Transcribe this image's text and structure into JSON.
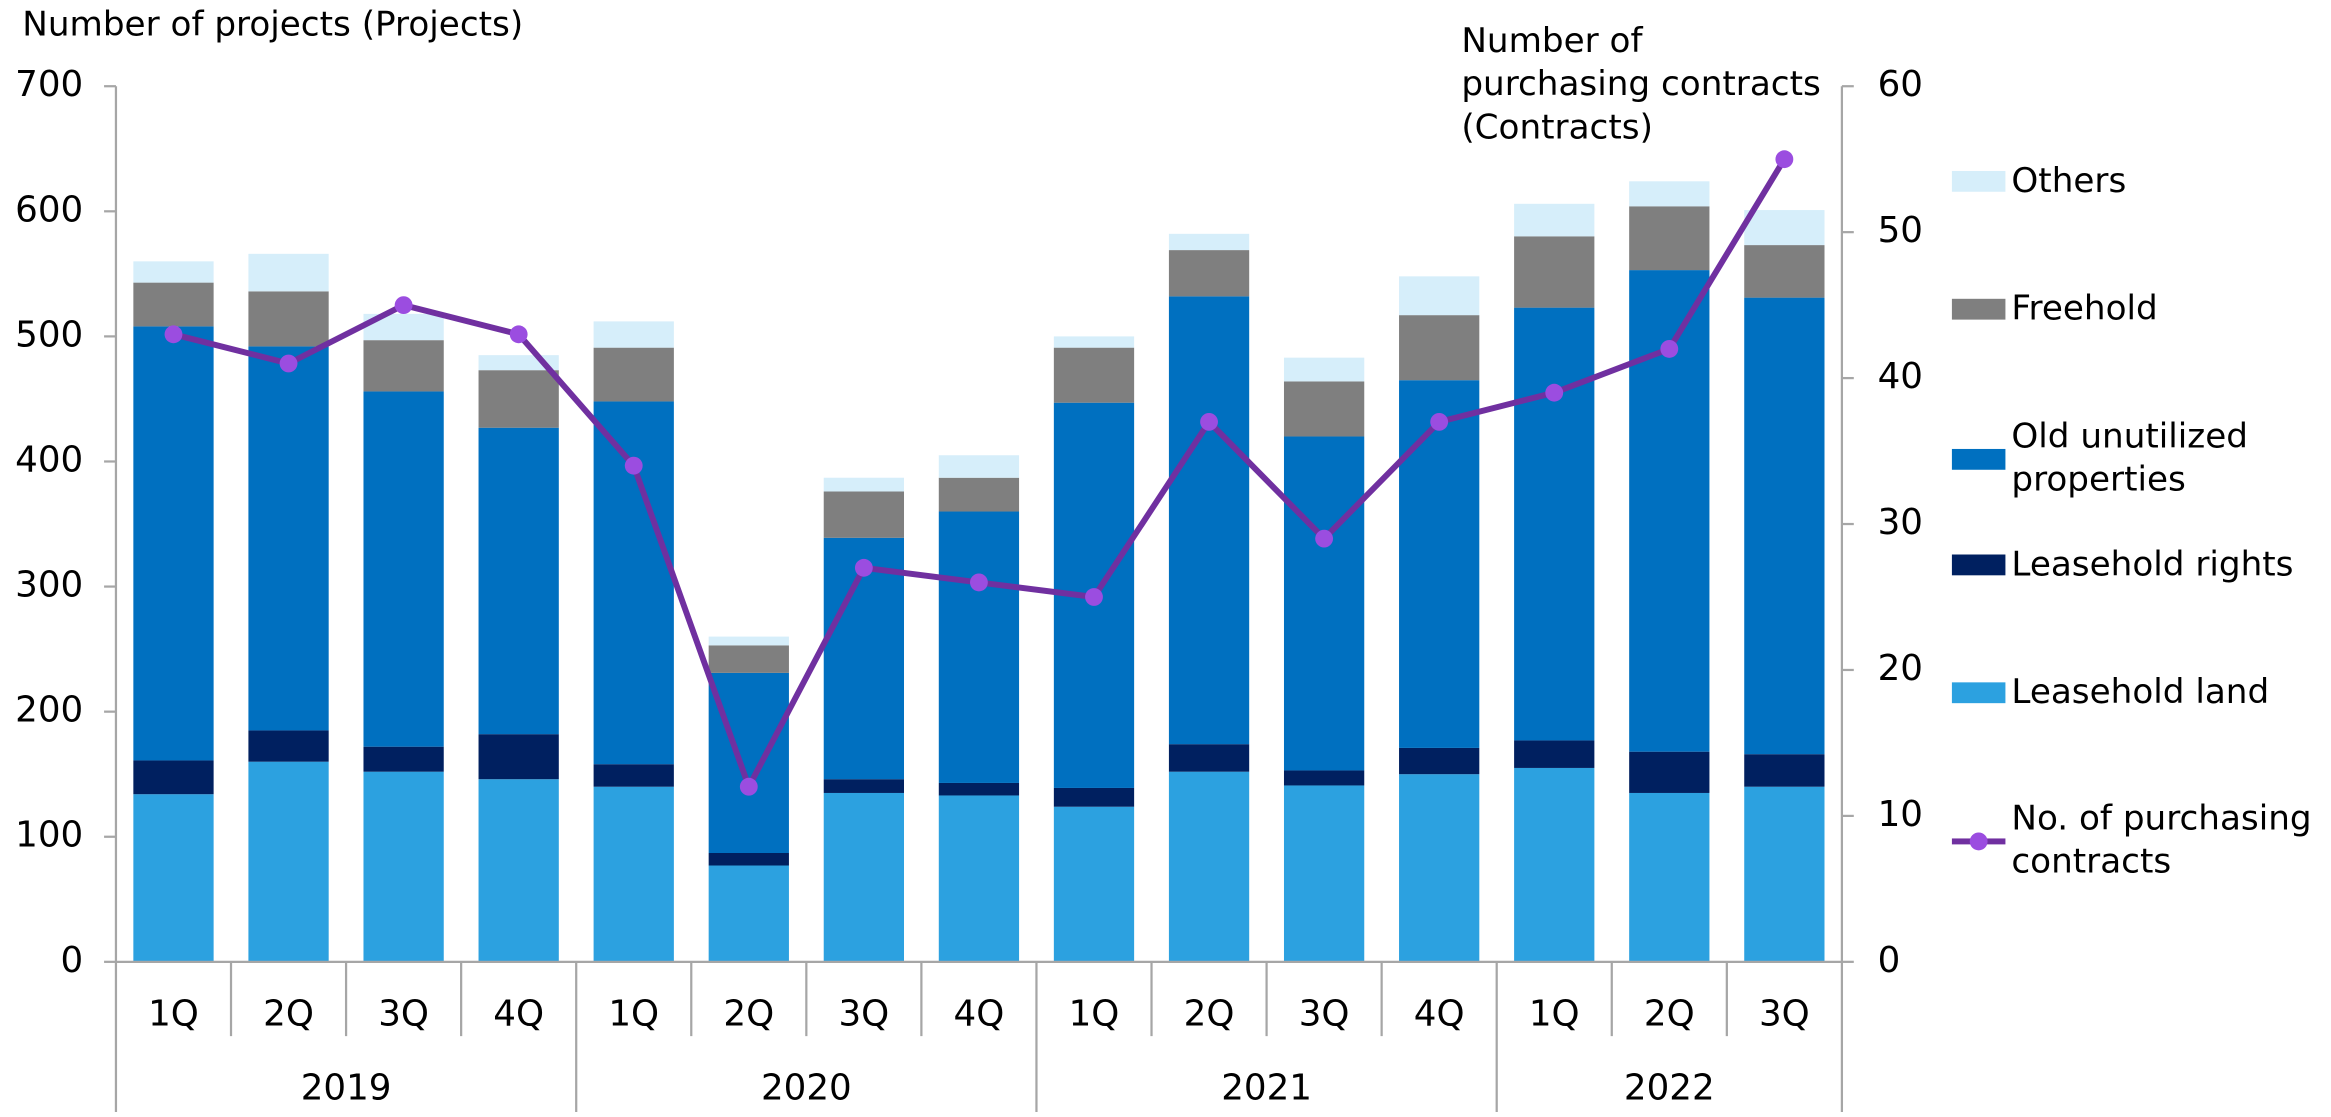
{
  "chart_data": {
    "type": "bar",
    "stacked": true,
    "ylabel": "Number of projects (Projects)",
    "y2label": "Number of purchasing contracts (Contracts)",
    "categories": [
      "1Q",
      "2Q",
      "3Q",
      "4Q",
      "1Q",
      "2Q",
      "3Q",
      "4Q",
      "1Q",
      "2Q",
      "3Q",
      "4Q",
      "1Q",
      "2Q",
      "3Q"
    ],
    "groups": [
      {
        "name": "2019",
        "count": 4
      },
      {
        "name": "2020",
        "count": 4
      },
      {
        "name": "2021",
        "count": 4
      },
      {
        "name": "2022",
        "count": 3
      }
    ],
    "series": [
      {
        "name": "Leasehold land",
        "color": "#2ca1e0",
        "values": [
          134,
          160,
          152,
          146,
          140,
          77,
          135,
          133,
          124,
          152,
          141,
          150,
          155,
          135,
          140
        ]
      },
      {
        "name": "Leasehold rights",
        "color": "#002060",
        "values": [
          27,
          25,
          20,
          36,
          18,
          10,
          11,
          10,
          15,
          22,
          12,
          21,
          22,
          33,
          26
        ]
      },
      {
        "name": "Old unutilized properties",
        "color": "#0070c0",
        "values": [
          347,
          307,
          284,
          245,
          290,
          144,
          193,
          217,
          308,
          358,
          267,
          294,
          346,
          385,
          365
        ]
      },
      {
        "name": "Freehold",
        "color": "#7f7f7f",
        "values": [
          35,
          44,
          41,
          46,
          43,
          22,
          37,
          27,
          44,
          37,
          44,
          52,
          57,
          51,
          42
        ]
      },
      {
        "name": "Others",
        "color": "#d6eefa",
        "values": [
          17,
          30,
          21,
          12,
          21,
          7,
          11,
          18,
          9,
          13,
          19,
          31,
          26,
          20,
          28
        ]
      },
      {
        "name": "No. of purchasing contracts",
        "type": "line",
        "axis": "y2",
        "color": "#7030a0",
        "marker_color": "#9b4de0",
        "values": [
          43,
          41,
          45,
          43,
          34,
          12,
          27,
          26,
          25,
          37,
          29,
          37,
          39,
          42,
          55
        ]
      }
    ],
    "ylim": [
      0,
      700
    ],
    "yticks": [
      0,
      100,
      200,
      300,
      400,
      500,
      600,
      700
    ],
    "y2lim": [
      0,
      60
    ],
    "y2ticks": [
      0,
      10,
      20,
      30,
      40,
      50,
      60
    ],
    "legend": "right",
    "grid": false
  }
}
